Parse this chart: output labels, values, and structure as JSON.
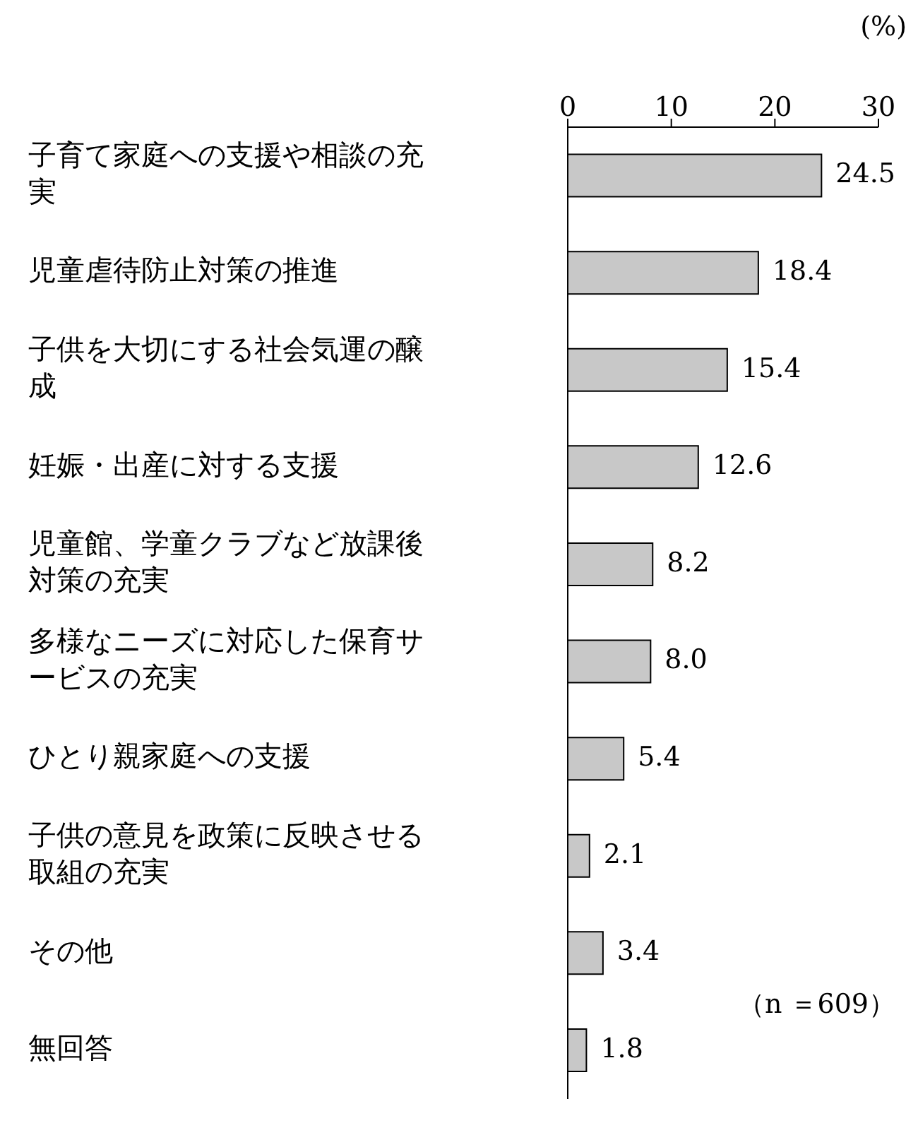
{
  "chart_data": {
    "type": "bar",
    "orientation": "horizontal",
    "xlabel": "(%)",
    "categories": [
      "子育て家庭への支援や相談の充実",
      "児童虐待防止対策の推進",
      "子供を大切にする社会気運の醸成",
      "妊娠・出産に対する支援",
      "児童館、学童クラブなど放課後対策の充実",
      "多様なニーズに対応した保育サービスの充実",
      "ひとり親家庭への支援",
      "子供の意見を政策に反映させる取組の充実",
      "その他",
      "無回答"
    ],
    "values": [
      24.5,
      18.4,
      15.4,
      12.6,
      8.2,
      8.0,
      5.4,
      2.1,
      3.4,
      1.8
    ],
    "value_labels": [
      "24.5",
      "18.4",
      "15.4",
      "12.6",
      "8.2",
      "8.0",
      "5.4",
      "2.1",
      "3.4",
      "1.8"
    ],
    "color": "#c8c8c8",
    "xlim": [
      0,
      30
    ],
    "xticks": [
      0,
      10,
      20,
      30
    ],
    "grid": false,
    "legend": false,
    "annotations": [
      "（n ＝609）"
    ]
  }
}
